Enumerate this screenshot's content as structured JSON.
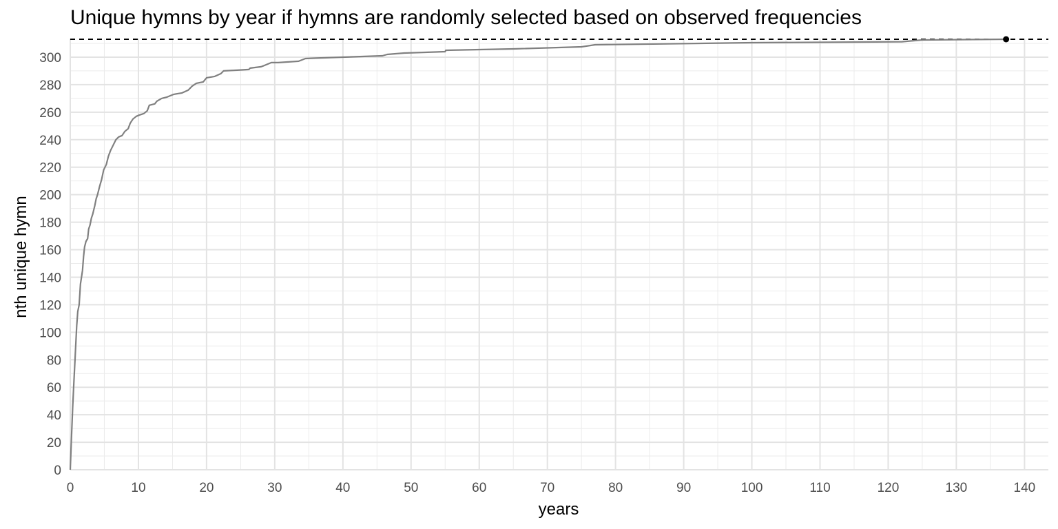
{
  "chart_data": {
    "type": "line",
    "title": "Unique hymns by year if hymns are randomly selected based on observed frequencies",
    "xlabel": "years",
    "ylabel": "nth unique hymn",
    "xlim": [
      0,
      143.5
    ],
    "ylim": [
      0,
      313.5
    ],
    "x_ticks": [
      0,
      10,
      20,
      30,
      40,
      50,
      60,
      70,
      80,
      90,
      100,
      110,
      120,
      130,
      140
    ],
    "y_ticks": [
      0,
      20,
      40,
      60,
      80,
      100,
      120,
      140,
      160,
      180,
      200,
      220,
      240,
      260,
      280,
      300
    ],
    "grid": true,
    "reference_line": {
      "y": 313,
      "style": "dashed",
      "color": "#000000"
    },
    "end_point": {
      "x": 137.3,
      "y": 313,
      "color": "#000000"
    },
    "series": [
      {
        "color": "#808080",
        "points": [
          [
            0,
            0
          ],
          [
            0.15,
            20
          ],
          [
            0.35,
            45
          ],
          [
            0.55,
            65
          ],
          [
            0.75,
            85
          ],
          [
            0.95,
            105
          ],
          [
            1.1,
            115
          ],
          [
            1.3,
            120
          ],
          [
            1.5,
            135
          ],
          [
            1.8,
            145
          ],
          [
            1.95,
            155
          ],
          [
            2.1,
            162
          ],
          [
            2.3,
            166
          ],
          [
            2.55,
            168
          ],
          [
            2.7,
            175
          ],
          [
            2.9,
            178
          ],
          [
            3.1,
            183
          ],
          [
            3.3,
            186
          ],
          [
            3.6,
            192
          ],
          [
            3.8,
            197
          ],
          [
            4.0,
            200
          ],
          [
            4.3,
            206
          ],
          [
            4.6,
            211
          ],
          [
            4.9,
            218
          ],
          [
            5.3,
            222
          ],
          [
            5.6,
            228
          ],
          [
            5.9,
            232
          ],
          [
            6.3,
            236
          ],
          [
            6.7,
            240
          ],
          [
            7.1,
            242
          ],
          [
            7.6,
            243
          ],
          [
            8.0,
            246
          ],
          [
            8.5,
            248
          ],
          [
            8.8,
            252
          ],
          [
            9.2,
            255
          ],
          [
            9.7,
            257
          ],
          [
            10.2,
            258
          ],
          [
            10.8,
            259
          ],
          [
            11.3,
            261
          ],
          [
            11.6,
            265
          ],
          [
            12.4,
            266
          ],
          [
            12.7,
            268
          ],
          [
            13.4,
            270
          ],
          [
            14.2,
            271
          ],
          [
            15.2,
            273
          ],
          [
            16.4,
            274
          ],
          [
            17.3,
            276
          ],
          [
            17.9,
            279
          ],
          [
            18.5,
            281
          ],
          [
            19.5,
            282
          ],
          [
            20.0,
            285
          ],
          [
            21.2,
            286
          ],
          [
            22.1,
            288
          ],
          [
            22.5,
            290
          ],
          [
            24.5,
            290.5
          ],
          [
            26.2,
            291
          ],
          [
            26.4,
            292
          ],
          [
            28.0,
            293
          ],
          [
            29.5,
            296
          ],
          [
            30.5,
            296
          ],
          [
            33.5,
            297
          ],
          [
            34.5,
            299
          ],
          [
            36.0,
            299.3
          ],
          [
            40.0,
            300
          ],
          [
            45.8,
            301
          ],
          [
            46.5,
            302
          ],
          [
            49.0,
            303
          ],
          [
            55.0,
            304
          ],
          [
            55.1,
            305
          ],
          [
            65.0,
            306
          ],
          [
            75.0,
            307.5
          ],
          [
            77.0,
            309
          ],
          [
            100.0,
            310.5
          ],
          [
            122.0,
            311.2
          ],
          [
            125.0,
            312.5
          ],
          [
            137.3,
            313
          ]
        ]
      }
    ]
  }
}
